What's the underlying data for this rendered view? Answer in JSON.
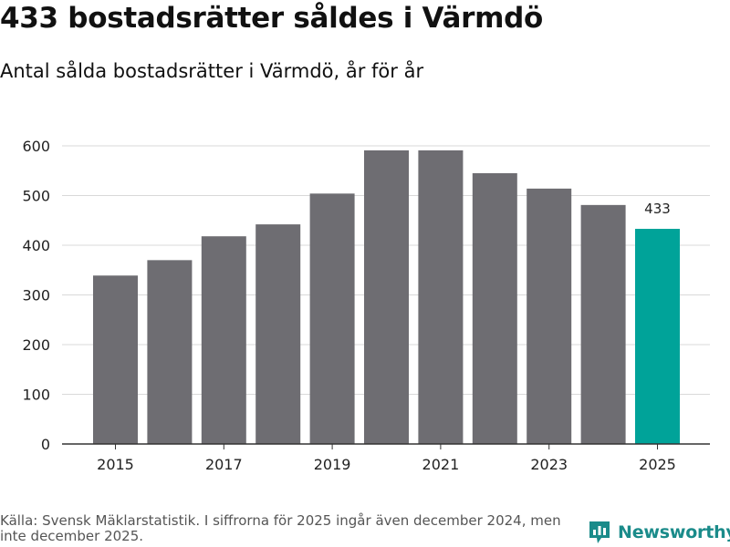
{
  "header": {
    "title": "433 bostadsrätter såldes i Värmdö",
    "subtitle": "Antal sålda bostadsrätter i Värmdö, år för år"
  },
  "chart_data": {
    "type": "bar",
    "title": "433 bostadsrätter såldes i Värmdö",
    "subtitle": "Antal sålda bostadsrätter i Värmdö, år för år",
    "xlabel": "",
    "ylabel": "",
    "categories": [
      "2015",
      "2016",
      "2017",
      "2018",
      "2019",
      "2020",
      "2021",
      "2022",
      "2023",
      "2024",
      "2025"
    ],
    "values": [
      339,
      370,
      418,
      442,
      504,
      591,
      591,
      545,
      514,
      481,
      433
    ],
    "x_tick_labels": [
      "2015",
      "2017",
      "2019",
      "2021",
      "2023",
      "2025"
    ],
    "y_ticks": [
      0,
      100,
      200,
      300,
      400,
      500,
      600
    ],
    "ylim": [
      0,
      600
    ],
    "grid": true,
    "highlight": {
      "category": "2025",
      "label": "433"
    },
    "colors": {
      "bar": "#6e6d72",
      "highlight": "#00a399",
      "grid": "#d9d9d9",
      "axis": "#333333"
    }
  },
  "footer": {
    "source": "Källa: Svensk Mäklarstatistik. I siffrorna för 2025 ingår även december 2024, men inte december 2025.",
    "brand": "Newsworthy",
    "brand_icon": "newsworthy-logo-icon",
    "brand_color": "#1a8b8a"
  }
}
